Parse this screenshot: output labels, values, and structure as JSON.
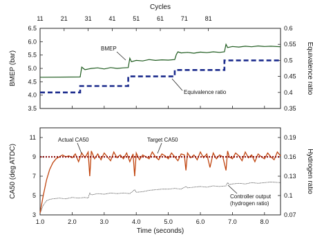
{
  "chart_data": [
    {
      "type": "line",
      "panel": "top",
      "x_top_label": "Cycles",
      "x_top_ticks": [
        11,
        21,
        31,
        41,
        51,
        61,
        71,
        81
      ],
      "x_range_seconds": [
        1.0,
        8.5
      ],
      "ylabel_left": "BMEP (bar)",
      "ylim_left": [
        3.5,
        6.5
      ],
      "yticks_left": [
        "3.5",
        "4.0",
        "4.5",
        "5.0",
        "5.5",
        "6.0",
        "6.5"
      ],
      "ylabel_right": "Equivalence ratio",
      "ylim_right": [
        0.35,
        0.6
      ],
      "yticks_right": [
        "0.35",
        "0.4",
        "0.45",
        "0.5",
        "0.55",
        "0.6"
      ],
      "grid": false,
      "series": [
        {
          "name": "BMEP",
          "axis": "left",
          "color": "#1d5a1d",
          "style": "solid",
          "x": [
            1.0,
            2.25,
            2.3,
            2.4,
            2.6,
            2.8,
            3.0,
            3.2,
            3.4,
            3.6,
            3.75,
            3.8,
            3.85,
            4.0,
            4.2,
            4.4,
            4.6,
            4.8,
            5.0,
            5.2,
            5.25,
            5.3,
            5.4,
            5.6,
            5.8,
            6.0,
            6.2,
            6.4,
            6.6,
            6.75,
            6.8,
            6.85,
            7.0,
            7.2,
            7.4,
            7.6,
            7.8,
            8.0,
            8.2,
            8.5
          ],
          "values": [
            4.67,
            4.68,
            5.05,
            4.95,
            5.0,
            5.02,
            4.98,
            5.03,
            5.0,
            5.02,
            5.03,
            5.38,
            5.25,
            5.3,
            5.28,
            5.33,
            5.3,
            5.32,
            5.31,
            5.33,
            5.52,
            5.62,
            5.58,
            5.6,
            5.57,
            5.61,
            5.59,
            5.62,
            5.6,
            5.62,
            5.9,
            5.78,
            5.82,
            5.8,
            5.83,
            5.81,
            5.84,
            5.82,
            5.83,
            5.81
          ]
        },
        {
          "name": "Equivalence ratio",
          "axis": "right",
          "color": "#1a2a8c",
          "style": "dashed",
          "x": [
            1.0,
            2.25,
            2.25,
            3.75,
            3.75,
            5.2,
            5.2,
            6.75,
            6.75,
            8.5
          ],
          "values": [
            0.4,
            0.4,
            0.42,
            0.42,
            0.45,
            0.45,
            0.47,
            0.47,
            0.5,
            0.5
          ]
        }
      ],
      "annotations": [
        "BMEP",
        "Equivalence ratio"
      ]
    },
    {
      "type": "line",
      "panel": "bottom",
      "xlabel": "Time (seconds)",
      "xlim": [
        1.0,
        8.5
      ],
      "xticks": [
        "1.0",
        "2.0",
        "3.0",
        "4.0",
        "5.0",
        "6.0",
        "7.0",
        "8.0"
      ],
      "ylabel_left": "CA50 (deg ATDC)",
      "ylim_left": [
        3,
        12
      ],
      "yticks_left": [
        "3",
        "5",
        "7",
        "9",
        "11"
      ],
      "ylabel_right": "Hydrogen ratio",
      "ylim_right": [
        0.07,
        0.205
      ],
      "yticks_right": [
        "0.07",
        "0.1",
        "0.13",
        "0.16",
        "0.19"
      ],
      "grid": false,
      "series": [
        {
          "name": "Actual CA50",
          "axis": "left",
          "color": "#c0440e",
          "style": "solid",
          "x": [
            1.0,
            1.1,
            1.2,
            1.3,
            1.4,
            1.5,
            1.6,
            1.7,
            1.8,
            1.9,
            2.0,
            2.1,
            2.2,
            2.3,
            2.4,
            2.5,
            2.55,
            2.6,
            2.7,
            2.8,
            2.9,
            3.0,
            3.1,
            3.2,
            3.3,
            3.4,
            3.5,
            3.6,
            3.7,
            3.8,
            3.9,
            3.95,
            4.0,
            4.1,
            4.2,
            4.3,
            4.4,
            4.5,
            4.6,
            4.7,
            4.8,
            4.9,
            5.0,
            5.1,
            5.2,
            5.3,
            5.4,
            5.5,
            5.55,
            5.6,
            5.7,
            5.8,
            5.9,
            6.0,
            6.1,
            6.2,
            6.3,
            6.4,
            6.5,
            6.6,
            6.7,
            6.8,
            6.85,
            6.9,
            7.0,
            7.1,
            7.2,
            7.3,
            7.4,
            7.5,
            7.6,
            7.7,
            7.8,
            7.9,
            8.0,
            8.1,
            8.2,
            8.3,
            8.4,
            8.5
          ],
          "values": [
            3.2,
            5.0,
            6.6,
            7.7,
            8.4,
            8.8,
            9.0,
            9.2,
            9.0,
            9.1,
            8.9,
            9.3,
            8.5,
            9.4,
            8.9,
            9.5,
            7.0,
            9.6,
            8.8,
            9.3,
            8.7,
            9.4,
            9.0,
            8.6,
            9.5,
            8.9,
            9.2,
            8.8,
            9.4,
            8.5,
            9.3,
            7.0,
            9.4,
            8.7,
            9.2,
            9.0,
            8.8,
            9.5,
            9.0,
            8.7,
            9.3,
            9.1,
            8.8,
            9.4,
            9.0,
            8.6,
            9.3,
            9.2,
            7.6,
            9.4,
            8.9,
            9.2,
            8.7,
            9.5,
            8.9,
            9.3,
            7.9,
            9.4,
            8.8,
            9.2,
            9.0,
            7.6,
            9.6,
            9.0,
            8.8,
            9.4,
            9.1,
            8.6,
            9.5,
            8.9,
            9.2,
            8.5,
            9.3,
            9.0,
            8.8,
            9.4,
            9.0,
            8.7,
            9.5,
            9.1
          ]
        },
        {
          "name": "Target CA50",
          "axis": "left",
          "color": "#8b0d0d",
          "style": "dotted",
          "x": [
            1.0,
            8.5
          ],
          "values": [
            9.0,
            9.0
          ]
        },
        {
          "name": "Controller output (hydrogen ratio)",
          "axis": "right",
          "color": "#555555",
          "style": "thin",
          "x": [
            1.0,
            1.1,
            1.2,
            1.3,
            1.4,
            1.6,
            1.8,
            2.0,
            2.2,
            2.4,
            2.5,
            2.55,
            2.6,
            2.8,
            3.0,
            3.2,
            3.4,
            3.6,
            3.8,
            3.95,
            4.0,
            4.2,
            4.4,
            4.6,
            4.8,
            5.0,
            5.2,
            5.4,
            5.55,
            5.6,
            5.8,
            6.0,
            6.2,
            6.4,
            6.6,
            6.8,
            6.85,
            6.9,
            7.0,
            7.2,
            7.4,
            7.6,
            7.8,
            8.0,
            8.2,
            8.5
          ],
          "values": [
            0.072,
            0.085,
            0.092,
            0.094,
            0.095,
            0.096,
            0.095,
            0.097,
            0.096,
            0.097,
            0.096,
            0.104,
            0.101,
            0.103,
            0.102,
            0.104,
            0.103,
            0.104,
            0.103,
            0.109,
            0.105,
            0.106,
            0.108,
            0.109,
            0.11,
            0.11,
            0.111,
            0.11,
            0.114,
            0.112,
            0.113,
            0.114,
            0.113,
            0.115,
            0.114,
            0.115,
            0.12,
            0.117,
            0.118,
            0.119,
            0.118,
            0.12,
            0.119,
            0.12,
            0.121,
            0.12
          ]
        }
      ],
      "annotations": [
        "Actual CA50",
        "Target CA50",
        "Controller output",
        "(hydrogen ratio)"
      ]
    }
  ]
}
